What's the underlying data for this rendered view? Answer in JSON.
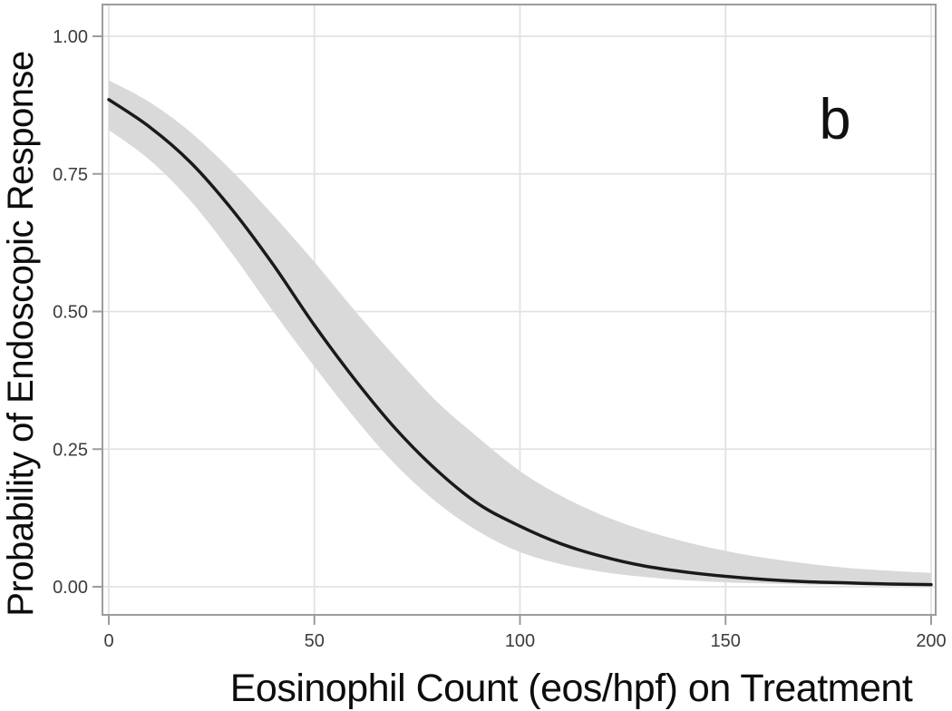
{
  "page": {
    "background": "#ffffff"
  },
  "chart_data": {
    "type": "line",
    "title": "",
    "panel_annotation": "b",
    "xlabel": "Eosinophil Count (eos/hpf) on Treatment",
    "ylabel": "Probability of Endoscopic Response",
    "xlim": [
      0,
      200
    ],
    "ylim": [
      0,
      1
    ],
    "x_ticks": [
      0,
      50,
      100,
      150,
      200
    ],
    "x_tick_labels": [
      "0",
      "50",
      "100",
      "150",
      "200"
    ],
    "y_ticks": [
      0,
      0.25,
      0.5,
      0.75,
      1
    ],
    "y_tick_labels": [
      "0.00",
      "0.25",
      "0.50",
      "0.75",
      "1.00"
    ],
    "grid": "on",
    "legend": "none",
    "x": [
      0,
      10,
      20,
      30,
      40,
      50,
      60,
      70,
      80,
      90,
      100,
      110,
      120,
      130,
      140,
      150,
      160,
      170,
      180,
      190,
      200
    ],
    "series": [
      {
        "name": "predicted-probability",
        "role": "line",
        "color": "#1a1a1a",
        "values": [
          0.885,
          0.835,
          0.77,
          0.685,
          0.585,
          0.475,
          0.375,
          0.285,
          0.21,
          0.15,
          0.11,
          0.078,
          0.055,
          0.038,
          0.027,
          0.019,
          0.013,
          0.009,
          0.007,
          0.005,
          0.004
        ]
      },
      {
        "name": "confidence-band-upper",
        "role": "band-upper",
        "color": "#d9d9d9",
        "values": [
          0.92,
          0.88,
          0.825,
          0.755,
          0.675,
          0.59,
          0.5,
          0.415,
          0.335,
          0.27,
          0.21,
          0.165,
          0.13,
          0.103,
          0.082,
          0.065,
          0.052,
          0.042,
          0.034,
          0.029,
          0.025
        ]
      },
      {
        "name": "confidence-band-lower",
        "role": "band-lower",
        "color": "#d9d9d9",
        "values": [
          0.83,
          0.775,
          0.7,
          0.605,
          0.5,
          0.4,
          0.305,
          0.22,
          0.152,
          0.1,
          0.063,
          0.041,
          0.027,
          0.018,
          0.012,
          0.008,
          0.006,
          0.004,
          0.003,
          0.002,
          0.002
        ]
      }
    ]
  },
  "style": {
    "curve_color": "#1a1a1a",
    "band_color": "#d9d9d9",
    "grid_color": "#e2e2e2",
    "frame_color": "#9c9c9c",
    "tick_color": "#9c9c9c",
    "tick_label_color": "#3c3c3c",
    "title_color": "#0d0d0d"
  }
}
